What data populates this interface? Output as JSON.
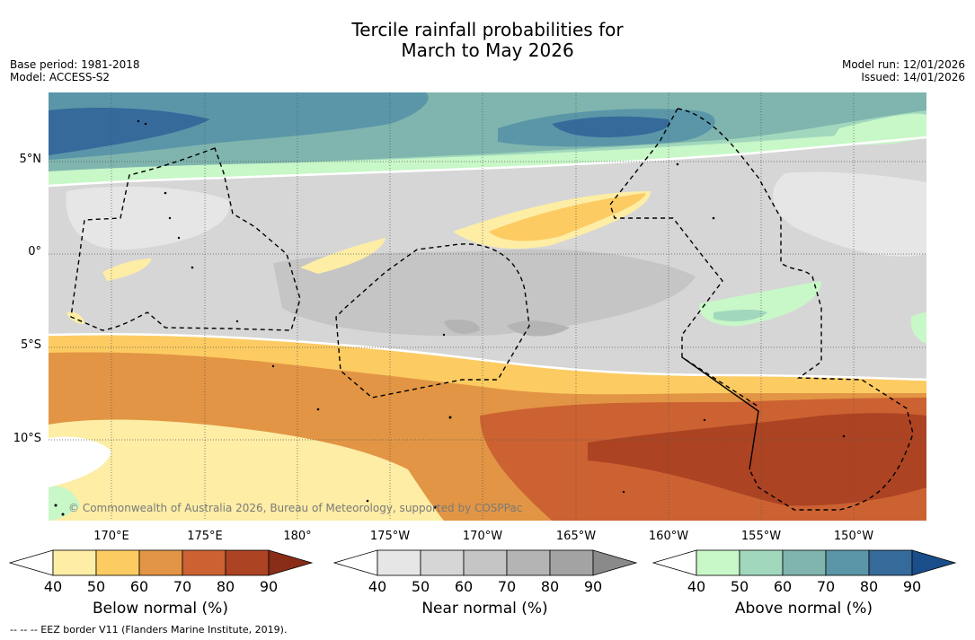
{
  "title": {
    "line1": "Tercile rainfall probabilities for",
    "line2": "March to May 2026"
  },
  "meta": {
    "base_period": "Base period: 1981-2018",
    "model": "Model: ACCESS-S2",
    "model_run": "Model run: 12/01/2026",
    "issued": "Issued: 14/01/2026"
  },
  "map": {
    "copyright": "© Commonwealth of Australia 2026, Bureau of Meteorology, supported by COSPPac",
    "lat_labels": [
      "5°N",
      "0°",
      "5°S",
      "10°S"
    ],
    "lon_labels": [
      "170°E",
      "175°E",
      "180°",
      "175°W",
      "170°W",
      "165°W",
      "160°W",
      "155°W",
      "150°W"
    ]
  },
  "colorbars": [
    {
      "title": "Below normal (%)",
      "ticks": [
        "40",
        "50",
        "60",
        "70",
        "80",
        "90"
      ],
      "colors": [
        "#ffffff",
        "#fdeda5",
        "#fccb62",
        "#e29544",
        "#cc6232",
        "#ac4322",
        "#8a2d18"
      ]
    },
    {
      "title": "Near normal (%)",
      "ticks": [
        "40",
        "50",
        "60",
        "70",
        "80",
        "90"
      ],
      "colors": [
        "#ffffff",
        "#e6e6e6",
        "#d6d6d6",
        "#c5c5c5",
        "#b4b4b4",
        "#a3a3a3",
        "#8a8a8a"
      ]
    },
    {
      "title": "Above normal (%)",
      "ticks": [
        "40",
        "50",
        "60",
        "70",
        "80",
        "90"
      ],
      "colors": [
        "#ffffff",
        "#c8f7c8",
        "#a1d8bd",
        "#7fb5ae",
        "#5a96a8",
        "#356a9b",
        "#1a4e8a"
      ]
    }
  ],
  "legend": {
    "eez": "--  --  -- EEZ border V11 (Flanders Marine Institute, 2019)."
  }
}
